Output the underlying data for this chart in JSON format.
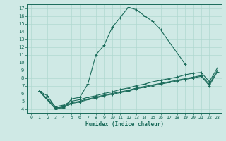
{
  "xlabel": "Humidex (Indice chaleur)",
  "ylabel": "",
  "bg_color": "#cfe9e5",
  "line_color": "#1a6b5a",
  "grid_color": "#b0d8d0",
  "grid_color_major": "#c8e8e0",
  "xlim": [
    -0.5,
    23.5
  ],
  "ylim": [
    3.5,
    17.5
  ],
  "xticks": [
    0,
    1,
    2,
    3,
    4,
    5,
    6,
    7,
    8,
    9,
    10,
    11,
    12,
    13,
    14,
    15,
    16,
    17,
    18,
    19,
    20,
    21,
    22,
    23
  ],
  "yticks": [
    4,
    5,
    6,
    7,
    8,
    9,
    10,
    11,
    12,
    13,
    14,
    15,
    16,
    17
  ],
  "series": [
    {
      "x": [
        1,
        2,
        3,
        4,
        5,
        6,
        7,
        8,
        9,
        10,
        11,
        12,
        13,
        14,
        15,
        16,
        17,
        19
      ],
      "y": [
        6.3,
        5.7,
        4.2,
        4.1,
        5.3,
        5.5,
        7.2,
        11.0,
        12.2,
        14.5,
        15.8,
        17.1,
        16.8,
        16.0,
        15.3,
        14.2,
        12.7,
        9.8
      ]
    },
    {
      "x": [
        1,
        3,
        4,
        5,
        6,
        7,
        8,
        9,
        10,
        11,
        12,
        13,
        14,
        15,
        16,
        17,
        18,
        19,
        20,
        21,
        22,
        23
      ],
      "y": [
        6.3,
        4.3,
        4.5,
        5.0,
        5.2,
        5.5,
        5.7,
        6.0,
        6.2,
        6.5,
        6.7,
        7.0,
        7.2,
        7.5,
        7.7,
        7.9,
        8.1,
        8.4,
        8.6,
        8.7,
        7.5,
        9.3
      ]
    },
    {
      "x": [
        1,
        3,
        4,
        5,
        6,
        7,
        8,
        9,
        10,
        11,
        12,
        13,
        14,
        15,
        16,
        17,
        18,
        19,
        20,
        21,
        22,
        23
      ],
      "y": [
        6.3,
        4.1,
        4.3,
        4.8,
        5.0,
        5.3,
        5.5,
        5.8,
        6.0,
        6.2,
        6.4,
        6.7,
        6.9,
        7.1,
        7.3,
        7.5,
        7.7,
        7.9,
        8.1,
        8.3,
        7.2,
        9.0
      ]
    },
    {
      "x": [
        1,
        3,
        4,
        5,
        6,
        7,
        8,
        9,
        10,
        11,
        12,
        13,
        14,
        15,
        16,
        17,
        18,
        19,
        20,
        21,
        22,
        23
      ],
      "y": [
        6.3,
        4.0,
        4.2,
        4.7,
        4.9,
        5.2,
        5.4,
        5.7,
        5.9,
        6.1,
        6.3,
        6.6,
        6.8,
        7.0,
        7.2,
        7.4,
        7.6,
        7.8,
        8.0,
        8.2,
        7.0,
        8.8
      ]
    }
  ]
}
